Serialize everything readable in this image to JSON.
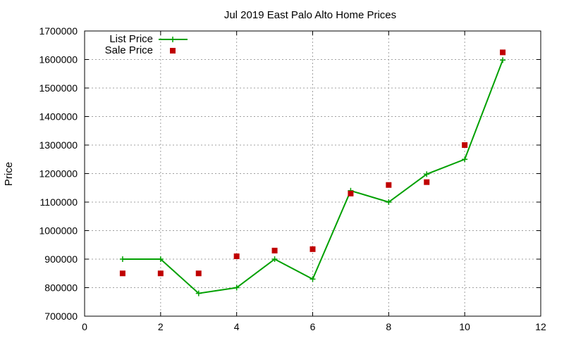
{
  "chart_data": {
    "type": "line",
    "title": "Jul 2019 East Palo Alto Home Prices",
    "xlabel": "",
    "ylabel": "Price",
    "xlim": [
      0,
      12
    ],
    "ylim": [
      700000,
      1700000
    ],
    "xticks": [
      0,
      2,
      4,
      6,
      8,
      10,
      12
    ],
    "yticks": [
      700000,
      800000,
      900000,
      1000000,
      1100000,
      1200000,
      1300000,
      1400000,
      1500000,
      1600000,
      1700000
    ],
    "grid": true,
    "legend_position": "top-left",
    "series": [
      {
        "name": "List Price",
        "style": "line-with-plus-markers",
        "color": "#00a000",
        "x": [
          1,
          2,
          3,
          4,
          5,
          6,
          7,
          8,
          9,
          10,
          11
        ],
        "y": [
          900000,
          900000,
          780000,
          800000,
          900000,
          830000,
          1140000,
          1100000,
          1198000,
          1250000,
          1598000
        ]
      },
      {
        "name": "Sale Price",
        "style": "square-markers",
        "color": "#c00000",
        "x": [
          1,
          2,
          3,
          4,
          5,
          6,
          7,
          8,
          9,
          10,
          11
        ],
        "y": [
          850000,
          850000,
          850000,
          910000,
          930000,
          935000,
          1130000,
          1160000,
          1170000,
          1300000,
          1625000
        ]
      }
    ]
  }
}
